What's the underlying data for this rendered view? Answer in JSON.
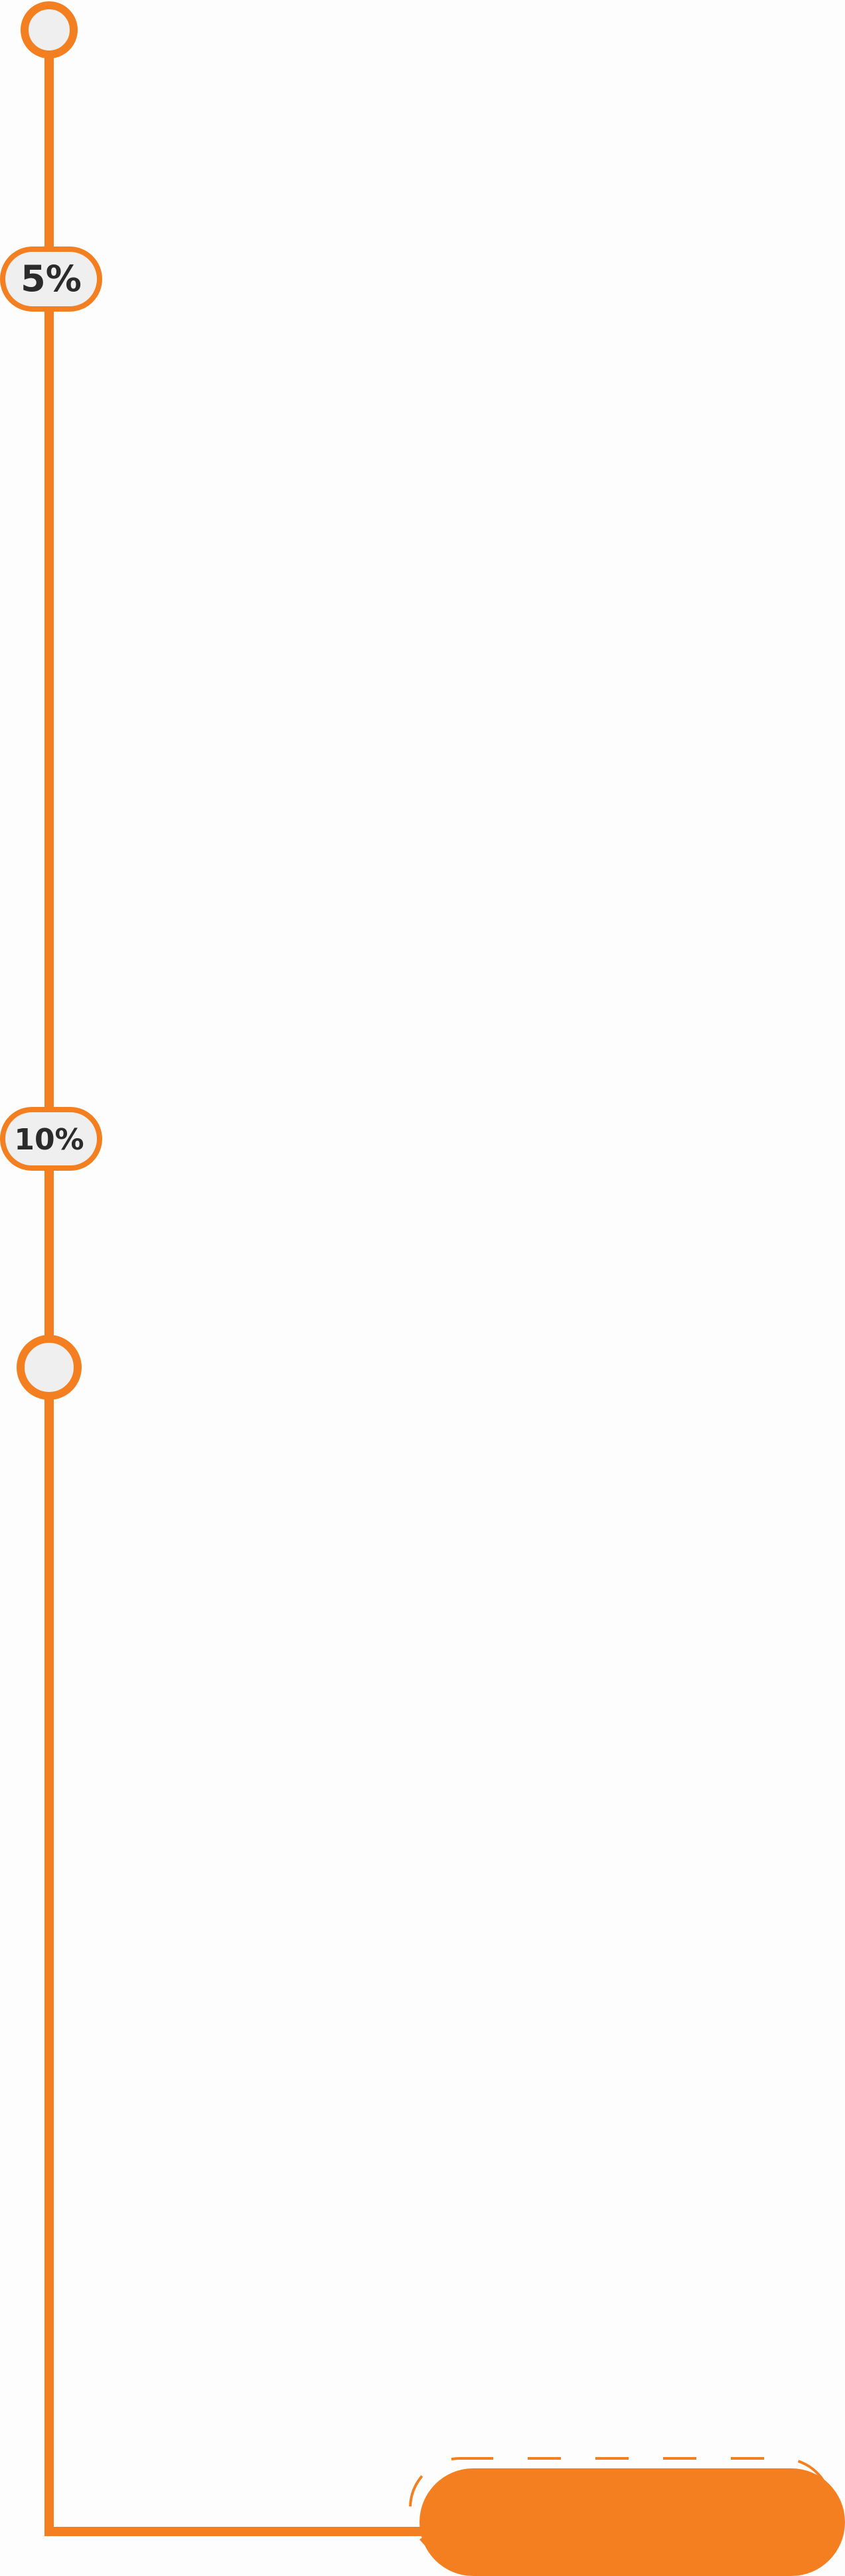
{
  "colors": {
    "accent": "#F47F20",
    "node_fill": "#EFEFEF",
    "text": "#2B2B2B",
    "background": "#FDFDFD"
  },
  "timeline": {
    "markers": [
      {
        "label": "5%"
      },
      {
        "label": "10%"
      }
    ],
    "nodes": [
      {
        "kind": "start"
      },
      {
        "kind": "mid"
      }
    ],
    "end_button": {
      "label": ""
    }
  }
}
